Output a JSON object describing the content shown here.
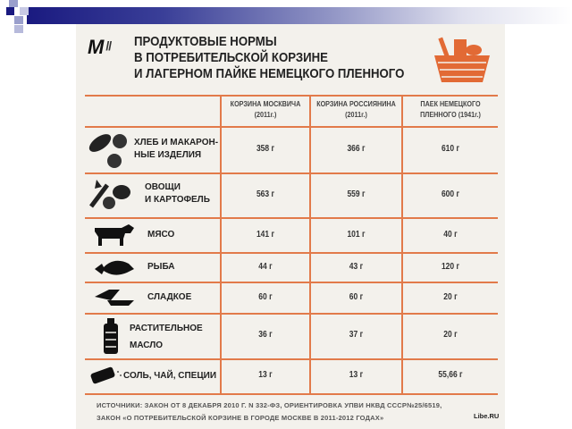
{
  "slide": {
    "accent_color": "#1a1a80"
  },
  "infographic": {
    "logo": "M",
    "logo_separator": "//",
    "title_lines": [
      "ПРОДУКТОВЫЕ НОРМЫ",
      "В ПОТРЕБИТЕЛЬСКОЙ КОРЗИНЕ",
      "И ЛАГЕРНОМ ПАЙКЕ НЕМЕЦКОГО ПЛЕННОГО"
    ],
    "accent_color": "#e27a4a",
    "columns": [
      {
        "line1": "КОРЗИНА МОСКВИЧА",
        "line2": "(2011г.)"
      },
      {
        "line1": "КОРЗИНА РОССИЯНИНА",
        "line2": "(2011г.)"
      },
      {
        "line1": "ПАЕК НЕМЕЦКОГО",
        "line2": "ПЛЕННОГО (1941г.)"
      }
    ],
    "rows": [
      {
        "icon": "bread-icon",
        "line1": "ХЛЕБ И МАКАРОН-",
        "line2": "НЫЕ ИЗДЕЛИЯ",
        "values": [
          "358 г",
          "366 г",
          "610 г"
        ]
      },
      {
        "icon": "vegetables-icon",
        "line1": "ОВОЩИ",
        "line2": "И КАРТОФЕЛЬ",
        "values": [
          "563 г",
          "559 г",
          "600 г"
        ]
      },
      {
        "icon": "cow-icon",
        "line1": "МЯСО",
        "line2": "",
        "values": [
          "141 г",
          "101 г",
          "40 г"
        ]
      },
      {
        "icon": "fish-icon",
        "line1": "РЫБА",
        "line2": "",
        "values": [
          "44 г",
          "43 г",
          "120 г"
        ]
      },
      {
        "icon": "sweets-icon",
        "line1": "СЛАДКОЕ",
        "line2": "",
        "values": [
          "60 г",
          "60 г",
          "20 г"
        ]
      },
      {
        "icon": "oil-bottle-icon",
        "line1": "РАСТИТЕЛЬНОЕ",
        "line2": "МАСЛО",
        "values": [
          "36 г",
          "37 г",
          "20 г"
        ]
      },
      {
        "icon": "salt-shaker-icon",
        "line1": "СОЛЬ, ЧАЙ, СПЕЦИИ",
        "line2": "",
        "values": [
          "13 г",
          "13 г",
          "55,66 г"
        ]
      }
    ],
    "sources_line1": "ИСТОЧНИКИ:  ЗАКОН ОТ 8 ДЕКАБРЯ 2010 Г. N 332-ФЗ, ОРИЕНТИРОВКА УПВИ НКВД СССР№25/6519,",
    "sources_line2": "ЗАКОН «О ПОТРЕБИТЕЛЬСКОЙ КОРЗИНЕ В ГОРОДЕ МОСКВЕ В 2011-2012 ГОДАХ»",
    "brand": "Libe.RU"
  }
}
